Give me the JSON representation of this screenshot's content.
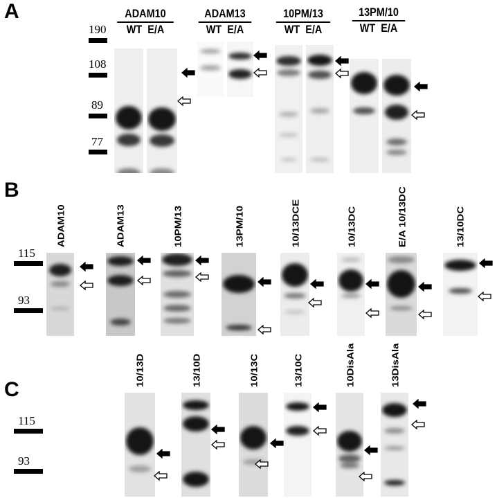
{
  "panels": {
    "A": {
      "letter": "A",
      "markers": [
        "190",
        "108",
        "89",
        "77"
      ],
      "groups": [
        {
          "name": "ADAM10",
          "lanes": [
            "WT",
            "E/A"
          ]
        },
        {
          "name": "ADAM13",
          "lanes": [
            "WT",
            "E/A"
          ]
        },
        {
          "name": "10PM/13",
          "lanes": [
            "WT",
            "E/A"
          ]
        },
        {
          "name": "13PM/10",
          "lanes": [
            "WT",
            "E/A"
          ]
        }
      ]
    },
    "B": {
      "letter": "B",
      "markers": [
        "115",
        "93"
      ],
      "lanes": [
        "ADAM10",
        "ADAM13",
        "10PM/13",
        "13PM/10",
        "10/13DCE",
        "10/13DC",
        "E/A 10/13DC",
        "13/10DC"
      ]
    },
    "C": {
      "letter": "C",
      "markers": [
        "115",
        "93"
      ],
      "lanes": [
        "10/13D",
        "13/10D",
        "10/13C",
        "13/10C",
        "10DisAla",
        "13DisAla"
      ]
    }
  },
  "icons": {
    "upper_band": "filled-arrow-icon",
    "lower_band": "open-arrow-icon"
  }
}
